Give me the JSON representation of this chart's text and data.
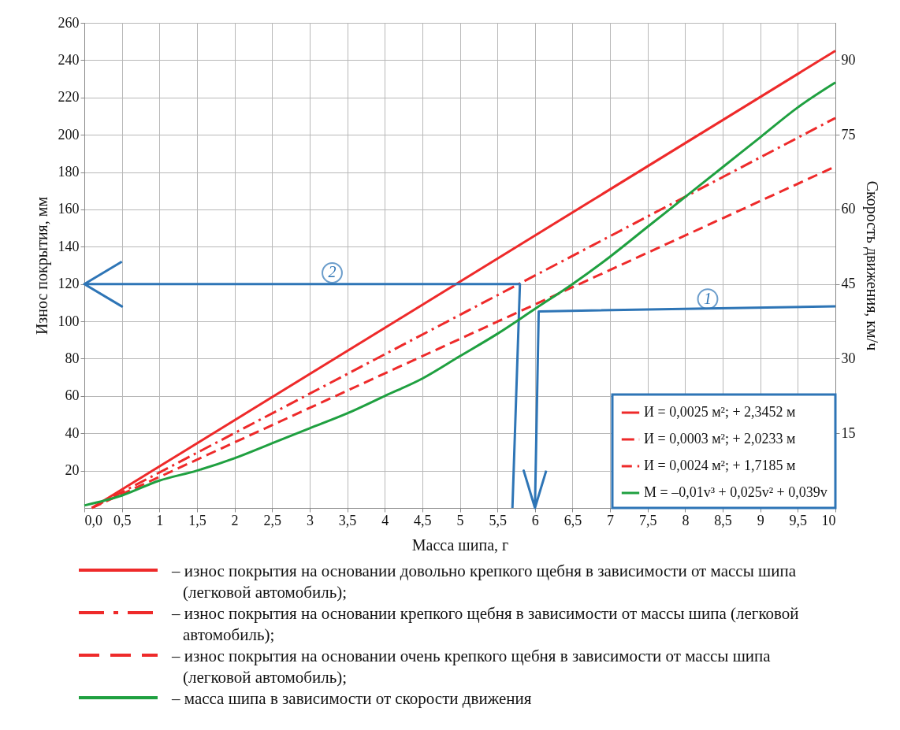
{
  "chart_data": {
    "type": "line",
    "xlabel": "Масса шипа, г",
    "ylabel": "Износ покрытия, мм",
    "y2label": "Скорость движения, км/ч",
    "xlim": [
      0,
      10
    ],
    "xticks": [
      {
        "value": 0,
        "label": "0,0"
      },
      {
        "value": 0.5,
        "label": "0,5"
      },
      1,
      {
        "value": 1.5,
        "label": "1,5"
      },
      2,
      {
        "value": 2.5,
        "label": "2,5"
      },
      3,
      {
        "value": 3.5,
        "label": "3,5"
      },
      4,
      {
        "value": 4.5,
        "label": "4,5"
      },
      5,
      {
        "value": 5.5,
        "label": "5,5"
      },
      6,
      {
        "value": 6.5,
        "label": "6,5"
      },
      7,
      {
        "value": 7.5,
        "label": "7,5"
      },
      8,
      {
        "value": 8.5,
        "label": "8,5"
      },
      9,
      {
        "value": 9.5,
        "label": "9,5"
      },
      10
    ],
    "ylim": [
      0,
      260
    ],
    "yticks": [
      20,
      40,
      60,
      80,
      100,
      120,
      140,
      160,
      180,
      200,
      220,
      240,
      260
    ],
    "y2lim": [
      0,
      97.5
    ],
    "y2ticks": [
      15,
      30,
      45,
      60,
      75,
      90
    ],
    "grid": true,
    "legend": "bottom right",
    "marker": "none",
    "series": [
      {
        "name": "И = 0,0025 м²; + 2,3452 м",
        "color": "#ee2a2a",
        "line_style": "solid",
        "x": [
          0.1,
          10
        ],
        "values": [
          0,
          245
        ]
      },
      {
        "name": "И = 0,0003 м²; + 2,0233 м",
        "color": "#ee2a2a",
        "line_style": "dashdot",
        "x": [
          0.1,
          10
        ],
        "values": [
          0,
          209
        ]
      },
      {
        "name": "И = 0,0024 м²; + 1,7185 м",
        "color": "#ee2a2a",
        "line_style": "dashed",
        "x": [
          0.1,
          10
        ],
        "values": [
          0,
          183
        ]
      },
      {
        "name": "М = –0,01v³ + 0,025v² + 0,039v",
        "color": "#1fa040",
        "line_style": "solid",
        "axis": "y2",
        "x": [
          0,
          0.5,
          1,
          1.5,
          2,
          2.5,
          3,
          3.5,
          4,
          4.5,
          5,
          5.5,
          6,
          6.5,
          7,
          7.5,
          8,
          8.5,
          9,
          9.5,
          10
        ],
        "values": [
          0.5,
          2.5,
          5.5,
          7.5,
          10,
          13,
          16,
          19,
          22.5,
          26,
          30.5,
          35,
          40,
          45,
          50.5,
          56.5,
          62.5,
          68.5,
          74.5,
          80.5,
          85.5
        ]
      },
      {
        "color": "#2e75b6",
        "line_style": "solid",
        "x": [
          0.5,
          0,
          0.5,
          0,
          5.8,
          5.7
        ],
        "values": [
          132,
          120,
          108,
          120,
          120,
          0
        ]
      },
      {
        "color": "#2e75b6",
        "line_style": "solid",
        "axis": "y2",
        "x": [
          10,
          6.05,
          6,
          5.85,
          6,
          6.15
        ],
        "values": [
          40.5,
          39.5,
          0,
          7.5,
          0,
          7.5
        ]
      }
    ],
    "annotations": [
      {
        "text": "2",
        "x": 3.3,
        "y": 126
      },
      {
        "text": "1",
        "x": 8.3,
        "y": 112
      },
      "– износ покрытия на основании довольно крепкого щебня в зависимости от массы шипа (легковой автомобиль);",
      "– износ покрытия на основании крепкого щебня в зависимости от массы шипа (легковой автомобиль);",
      "– износ покрытия на основании очень крепкого щебня в зависимости от массы шипа (легковой автомобиль);",
      "– масса шипа в зависимости от скорости движения"
    ]
  }
}
